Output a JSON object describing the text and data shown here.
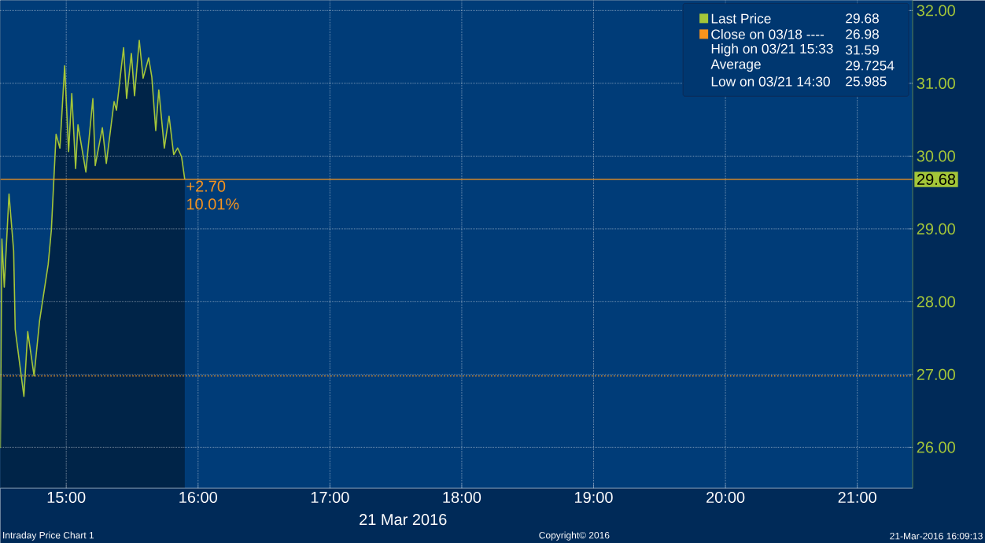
{
  "chart_data": {
    "type": "line",
    "xlabel": "21 Mar 2016",
    "x": [
      14.5,
      14.512,
      14.53,
      14.566,
      14.601,
      14.613,
      14.679,
      14.708,
      14.756,
      14.798,
      14.863,
      14.887,
      14.923,
      14.952,
      14.988,
      15.018,
      15.042,
      15.071,
      15.089,
      15.149,
      15.202,
      15.22,
      15.274,
      15.304,
      15.363,
      15.381,
      15.435,
      15.458,
      15.494,
      15.518,
      15.554,
      15.583,
      15.625,
      15.649,
      15.679,
      15.702,
      15.744,
      15.78,
      15.815,
      15.845,
      15.875,
      15.899
    ],
    "series": [
      {
        "name": "Last Price",
        "color": "#a4c639",
        "values": [
          25.99,
          28.86,
          28.2,
          29.48,
          28.7,
          27.62,
          26.7,
          27.59,
          26.98,
          27.74,
          28.51,
          28.98,
          30.3,
          30.11,
          31.24,
          30.06,
          30.86,
          29.83,
          30.43,
          29.78,
          30.79,
          29.87,
          30.39,
          29.9,
          30.75,
          30.63,
          31.49,
          30.79,
          31.41,
          30.83,
          31.59,
          31.07,
          31.35,
          31.09,
          30.35,
          30.91,
          30.11,
          30.55,
          30.02,
          30.11,
          29.99,
          29.68
        ]
      }
    ],
    "xlim": [
      14.5,
      21.42
    ],
    "ylim": [
      25.44,
      32.14
    ],
    "xticks": [
      {
        "value": 15,
        "label": "15:00"
      },
      {
        "value": 16,
        "label": "16:00"
      },
      {
        "value": 17,
        "label": "17:00"
      },
      {
        "value": 18,
        "label": "18:00"
      },
      {
        "value": 19,
        "label": "19:00"
      },
      {
        "value": 20,
        "label": "20:00"
      },
      {
        "value": 21,
        "label": "21:00"
      }
    ],
    "yticks": [
      {
        "value": 26,
        "label": "26.00"
      },
      {
        "value": 27,
        "label": "27.00"
      },
      {
        "value": 28,
        "label": "28.00"
      },
      {
        "value": 29,
        "label": "29.00"
      },
      {
        "value": 30,
        "label": "30.00"
      },
      {
        "value": 31,
        "label": "31.00"
      },
      {
        "value": 32,
        "label": "32.00"
      }
    ],
    "ref_lines": [
      {
        "axis": "y",
        "value": 26.98,
        "label": "Close on 03/18 ----",
        "color": "#f7941d",
        "line_style": "dotted"
      },
      {
        "axis": "y",
        "value": 29.68,
        "label": "29.68",
        "color": "#f7941d",
        "line_style": "solid"
      }
    ],
    "annotations": [
      "29.68",
      "26.98",
      "High on 03/21 15:33",
      "31.59",
      "Average",
      "29.7254",
      "Low on 03/21 14:30",
      "25.985",
      {
        "text": "+2.70",
        "x": 15.899,
        "y": 29.68
      },
      "10.01%",
      "Intraday Price Chart 1",
      "Copyright© 2016",
      "21-Mar-2016 16:09:13"
    ],
    "grid": true,
    "legend": "top right"
  }
}
